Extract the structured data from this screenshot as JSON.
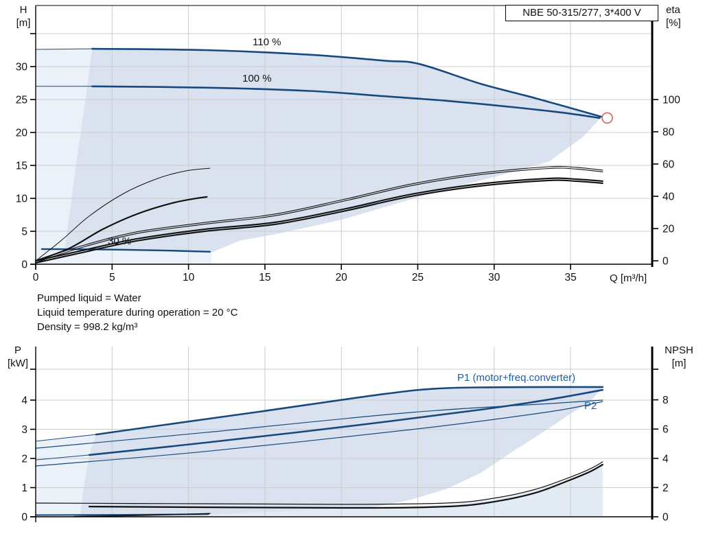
{
  "header": {
    "title": "NBE 50-315/277, 3*400 V"
  },
  "axis_labels": {
    "h": "H",
    "h_unit": "[m]",
    "eta": "eta",
    "eta_unit": "[%]",
    "q": "Q [m³/h]",
    "p": "P",
    "p_unit": "[kW]",
    "npsh": "NPSH",
    "npsh_unit": "[m]"
  },
  "curve_labels": {
    "s110": "110 %",
    "s100": "100 %",
    "s30": "30 %",
    "p1": "P1 (motor+freq.converter)",
    "p2": "P2"
  },
  "annotations": {
    "line1": "Pumped liquid = Water",
    "line2": "Liquid temperature during operation = 20 °C",
    "line3": "Density = 998.2 kg/m³"
  },
  "colors": {
    "curve_blue": "#17497E",
    "black": "#111111",
    "shade": "#D9E2EE",
    "shade_light": "#EAF1F9",
    "shade_wedge": "#E2EAF3",
    "grid": "#CCCCCC",
    "label_blue": "#1D5FA5",
    "red": "#E05A5A"
  },
  "chart_data": [
    {
      "type": "line",
      "name": "QH and efficiency curves",
      "x_axis": {
        "label": "Q [m³/h]",
        "ticks": [
          0,
          5,
          10,
          15,
          20,
          25,
          30,
          35
        ],
        "range": [
          0,
          40.3
        ]
      },
      "y_left": {
        "label": "H [m]",
        "ticks": [
          0,
          5,
          10,
          15,
          20,
          25,
          30
        ],
        "unlabeled_ticks": [
          35
        ],
        "range": [
          0,
          39.2
        ]
      },
      "y_right": {
        "label": "eta [%]",
        "ticks": [
          0,
          20,
          40,
          60,
          80,
          100
        ],
        "range": [
          0,
          158
        ]
      },
      "grid": true,
      "operating_point": {
        "q": 37.4,
        "h": 22.2
      },
      "regions": [
        {
          "id": "envelope-light",
          "axis": "H",
          "fill": "shade_light",
          "points": [
            [
              0,
              32.6
            ],
            [
              3.7,
              32.7
            ],
            [
              3.4,
              27.6
            ],
            [
              3.1,
              22.4
            ],
            [
              2.7,
              16.1
            ],
            [
              2.4,
              10.9
            ],
            [
              2.1,
              5.7
            ],
            [
              1.9,
              2.3
            ],
            [
              6,
              2.1
            ],
            [
              11.5,
              1.8
            ],
            [
              11.5,
              0
            ],
            [
              0,
              0
            ]
          ]
        },
        {
          "id": "envelope-dark",
          "axis": "H",
          "fill": "shade",
          "points": [
            [
              3.7,
              32.7
            ],
            [
              11.1,
              32.5
            ],
            [
              17.9,
              31.8
            ],
            [
              22.8,
              30.9
            ],
            [
              25.1,
              30.4
            ],
            [
              29.1,
              27.4
            ],
            [
              32.7,
              25.2
            ],
            [
              37.0,
              22.3
            ],
            [
              35.8,
              19.3
            ],
            [
              33.6,
              15.6
            ],
            [
              30.1,
              13.3
            ],
            [
              26.1,
              10.9
            ],
            [
              20.1,
              6.8
            ],
            [
              15.6,
              4.5
            ],
            [
              13.4,
              3.6
            ],
            [
              11.5,
              1.8
            ],
            [
              8,
              2.0
            ],
            [
              4,
              2.25
            ],
            [
              1.9,
              2.3
            ],
            [
              2.1,
              5.7
            ],
            [
              2.4,
              10.9
            ],
            [
              2.7,
              16.1
            ],
            [
              3.1,
              22.4
            ],
            [
              3.4,
              27.6
            ]
          ]
        }
      ],
      "series": [
        {
          "id": "H-110pct-lead",
          "axis": "H",
          "color": "curve_blue",
          "width": 1,
          "points": [
            [
              0,
              32.6
            ],
            [
              3.7,
              32.7
            ]
          ]
        },
        {
          "id": "H-110pct",
          "axis": "H",
          "color": "curve_blue",
          "width": 2.6,
          "points": [
            [
              3.7,
              32.7
            ],
            [
              11.1,
              32.5
            ],
            [
              17.9,
              31.8
            ],
            [
              22.8,
              30.9
            ],
            [
              25.1,
              30.4
            ],
            [
              29.1,
              27.4
            ],
            [
              32.7,
              25.2
            ],
            [
              37.0,
              22.4
            ]
          ]
        },
        {
          "id": "H-100pct-lead",
          "axis": "H",
          "color": "curve_blue",
          "width": 1,
          "points": [
            [
              0,
              27.0
            ],
            [
              3.7,
              27.0
            ]
          ]
        },
        {
          "id": "H-100pct",
          "axis": "H",
          "color": "curve_blue",
          "width": 2.6,
          "points": [
            [
              3.7,
              27.0
            ],
            [
              11.1,
              26.8
            ],
            [
              17.9,
              26.3
            ],
            [
              22.8,
              25.5
            ],
            [
              26.9,
              24.8
            ],
            [
              31.4,
              23.8
            ],
            [
              34.5,
              23.0
            ],
            [
              36.9,
              22.2
            ]
          ]
        },
        {
          "id": "H-30pct",
          "axis": "H",
          "color": "curve_blue",
          "width": 2.4,
          "points": [
            [
              0.4,
              2.3
            ],
            [
              4,
              2.25
            ],
            [
              8,
              2.1
            ],
            [
              11.4,
              1.9
            ]
          ]
        },
        {
          "id": "eta-pump-motor",
          "axis": "eta",
          "color": "black",
          "width": 1.1,
          "pair": 2.5,
          "points": [
            [
              0,
              0
            ],
            [
              3.05,
              9.4
            ],
            [
              6.6,
              17.9
            ],
            [
              11.1,
              23.8
            ],
            [
              15.6,
              28.9
            ],
            [
              20.1,
              37.9
            ],
            [
              24.6,
              47.7
            ],
            [
              29.1,
              54.5
            ],
            [
              33.6,
              58.3
            ],
            [
              35.4,
              57.9
            ],
            [
              37.1,
              56.2
            ]
          ]
        },
        {
          "id": "eta-pump",
          "axis": "eta",
          "color": "black",
          "width": 2.1,
          "pair": 3,
          "points": [
            [
              0,
              0
            ],
            [
              3.05,
              6.4
            ],
            [
              6.6,
              13.6
            ],
            [
              11.1,
              19.6
            ],
            [
              15.6,
              23.8
            ],
            [
              20.1,
              31.9
            ],
            [
              24.6,
              41.3
            ],
            [
              29.1,
              47.7
            ],
            [
              33.6,
              51.1
            ],
            [
              35.4,
              50.6
            ],
            [
              37.1,
              49.4
            ]
          ]
        },
        {
          "id": "eta-30pct-thin",
          "axis": "eta",
          "color": "black",
          "width": 1,
          "points": [
            [
              0,
              0
            ],
            [
              1.7,
              12.8
            ],
            [
              3.5,
              27.7
            ],
            [
              5.75,
              41.7
            ],
            [
              8.0,
              51.1
            ],
            [
              9.8,
              55.7
            ],
            [
              11.4,
              57.4
            ]
          ]
        },
        {
          "id": "eta-30pct-thick",
          "axis": "eta",
          "color": "black",
          "width": 2.2,
          "points": [
            [
              0,
              0
            ],
            [
              2.2,
              7.7
            ],
            [
              4.4,
              19.6
            ],
            [
              6.6,
              28.9
            ],
            [
              8.9,
              35.7
            ],
            [
              10.5,
              38.7
            ],
            [
              11.2,
              39.6
            ]
          ]
        }
      ]
    },
    {
      "type": "line",
      "name": "Power and NPSH curves",
      "x_axis": {
        "label": "Q [m³/h]",
        "ticks": [],
        "range": [
          0,
          40.3
        ]
      },
      "y_left": {
        "label": "P [kW]",
        "ticks": [
          0,
          1,
          2,
          3,
          4
        ],
        "unlabeled_y": 538,
        "range": [
          0,
          5.8
        ]
      },
      "y_right": {
        "label": "NPSH [m]",
        "ticks": [
          0,
          2,
          4,
          6,
          8
        ],
        "unlabeled_y": 538,
        "range": [
          0,
          11.6
        ]
      },
      "grid": true,
      "regions": [
        {
          "id": "p-envelope-light",
          "axis": "P",
          "fill": "shade_light",
          "points": [
            [
              0,
              2.59
            ],
            [
              3.95,
              2.82
            ],
            [
              3.6,
              2.3
            ],
            [
              3.4,
              1.8
            ],
            [
              3.1,
              0.9
            ],
            [
              2.9,
              0
            ],
            [
              0,
              0
            ]
          ]
        },
        {
          "id": "p-envelope-dark",
          "axis": "P",
          "fill": "shade",
          "points": [
            [
              3.95,
              2.82
            ],
            [
              8,
              3.12
            ],
            [
              14.6,
              3.6
            ],
            [
              22.8,
              4.21
            ],
            [
              26.4,
              4.4
            ],
            [
              30,
              4.44
            ],
            [
              37.1,
              4.44
            ],
            [
              36.3,
              3.95
            ],
            [
              34.9,
              3.5
            ],
            [
              33.2,
              2.9
            ],
            [
              31.4,
              2.3
            ],
            [
              29.1,
              1.5
            ],
            [
              26.9,
              0.96
            ],
            [
              24.6,
              0.59
            ],
            [
              22.4,
              0.35
            ],
            [
              20.1,
              0.21
            ],
            [
              17.9,
              0.12
            ],
            [
              15.6,
              0.07
            ],
            [
              11.1,
              0.02
            ],
            [
              6.6,
              0
            ],
            [
              2.9,
              0
            ],
            [
              3.1,
              0.9
            ],
            [
              3.4,
              1.8
            ],
            [
              3.6,
              2.3
            ]
          ]
        },
        {
          "id": "npsh-wedge",
          "axis": "NPSH",
          "fill": "shade_wedge",
          "points": [
            [
              9,
              0.05
            ],
            [
              20.1,
              0.56
            ],
            [
              26.9,
              0.82
            ],
            [
              30,
              1.17
            ],
            [
              32.7,
              1.8
            ],
            [
              34.9,
              2.6
            ],
            [
              36.3,
              3.2
            ],
            [
              37.1,
              3.66
            ],
            [
              37.1,
              0.05
            ]
          ]
        }
      ],
      "series": [
        {
          "id": "P1-110pct-lead",
          "axis": "P",
          "color": "curve_blue",
          "width": 1,
          "points": [
            [
              0,
              2.59
            ],
            [
              3.95,
              2.82
            ]
          ]
        },
        {
          "id": "P1-110pct",
          "axis": "P",
          "color": "curve_blue",
          "width": 2.6,
          "points": [
            [
              3.95,
              2.82
            ],
            [
              8,
              3.12
            ],
            [
              14.6,
              3.6
            ],
            [
              22.8,
              4.21
            ],
            [
              26.4,
              4.4
            ],
            [
              30,
              4.44
            ],
            [
              37.1,
              4.45
            ]
          ]
        },
        {
          "id": "P2-110pct",
          "axis": "P",
          "color": "curve_blue",
          "width": 1.2,
          "points": [
            [
              0,
              2.35
            ],
            [
              11.1,
              2.89
            ],
            [
              24.6,
              3.58
            ],
            [
              33.6,
              3.88
            ],
            [
              37.1,
              4.0
            ]
          ]
        },
        {
          "id": "P1-100pct-lead",
          "axis": "P",
          "color": "curve_blue",
          "width": 1,
          "points": [
            [
              0,
              1.95
            ],
            [
              3.5,
              2.12
            ]
          ]
        },
        {
          "id": "P1-100pct",
          "axis": "P",
          "color": "curve_blue",
          "width": 2.6,
          "points": [
            [
              3.5,
              2.12
            ],
            [
              11.1,
              2.54
            ],
            [
              20.1,
              3.08
            ],
            [
              29.1,
              3.67
            ],
            [
              33.6,
              4.02
            ],
            [
              37.1,
              4.35
            ]
          ]
        },
        {
          "id": "P2-100pct",
          "axis": "P",
          "color": "curve_blue",
          "width": 1.2,
          "points": [
            [
              0,
              1.74
            ],
            [
              11.1,
              2.24
            ],
            [
              24.6,
              2.99
            ],
            [
              33.6,
              3.6
            ],
            [
              37.1,
              3.95
            ]
          ]
        },
        {
          "id": "P2-30pct",
          "axis": "P",
          "color": "curve_blue",
          "width": 2,
          "points": [
            [
              0,
              0.06
            ],
            [
              6,
              0.07
            ],
            [
              11.3,
              0.09
            ]
          ]
        },
        {
          "id": "npsh-30pct",
          "axis": "NPSH",
          "color": "black",
          "width": 1.5,
          "points": [
            [
              2.5,
              0.02
            ],
            [
              7,
              0.1
            ],
            [
              11.4,
              0.22
            ]
          ]
        },
        {
          "id": "npsh-thin",
          "axis": "NPSH",
          "color": "black",
          "width": 1.2,
          "points": [
            [
              0,
              0.94
            ],
            [
              11.1,
              0.89
            ],
            [
              20.1,
              0.85
            ],
            [
              26.9,
              0.94
            ],
            [
              30.0,
              1.27
            ],
            [
              32.7,
              1.88
            ],
            [
              34.9,
              2.68
            ],
            [
              36.3,
              3.29
            ],
            [
              37.1,
              3.76
            ]
          ]
        },
        {
          "id": "npsh-thick",
          "axis": "NPSH",
          "color": "black",
          "width": 2.2,
          "points": [
            [
              3.5,
              0.7
            ],
            [
              20.1,
              0.61
            ],
            [
              26.9,
              0.7
            ],
            [
              30.0,
              1.03
            ],
            [
              32.7,
              1.64
            ],
            [
              34.9,
              2.49
            ],
            [
              36.3,
              3.1
            ],
            [
              37.1,
              3.57
            ]
          ]
        }
      ]
    }
  ]
}
